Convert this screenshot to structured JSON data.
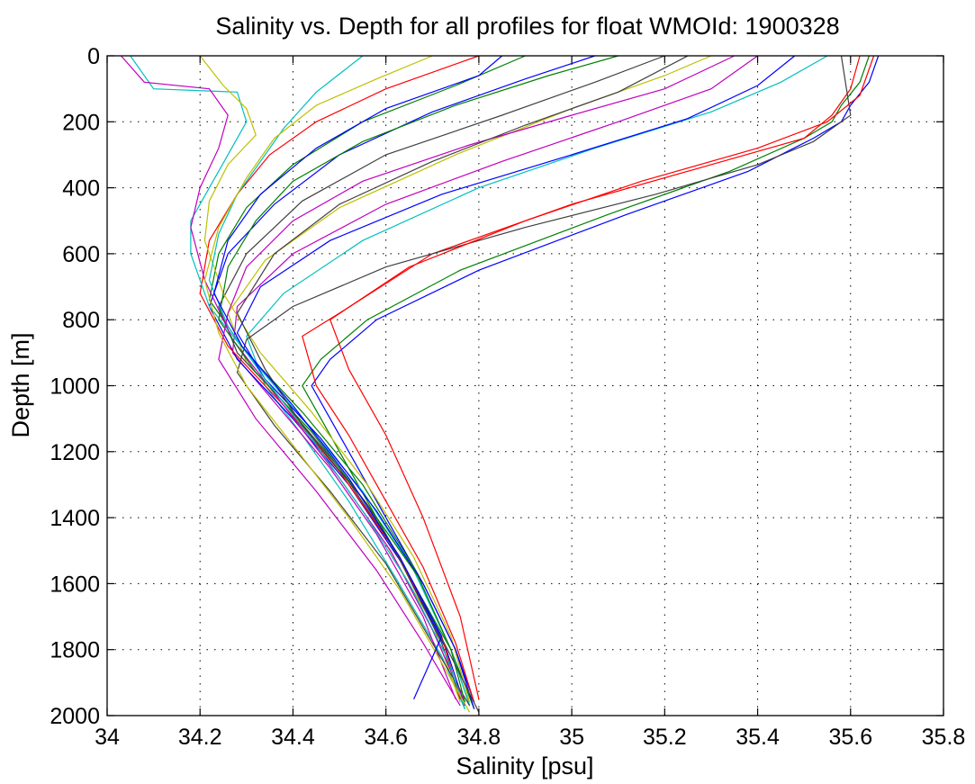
{
  "chart_data": {
    "type": "line",
    "title": "Salinity vs. Depth for all profiles for float WMOId: 1900328",
    "xlabel": "Salinity [psu]",
    "ylabel": "Depth [m]",
    "xlim": [
      34,
      35.8
    ],
    "ylim": [
      0,
      2000
    ],
    "y_reversed": true,
    "grid": true,
    "legend": "none",
    "x_ticks": [
      "34",
      "34.2",
      "34.4",
      "34.6",
      "34.8",
      "35",
      "35.2",
      "35.4",
      "35.6",
      "35.8"
    ],
    "y_ticks": [
      "0",
      "200",
      "400",
      "600",
      "800",
      "1000",
      "1200",
      "1400",
      "1600",
      "1800",
      "2000"
    ],
    "series_colors": [
      "#0000ff",
      "#008000",
      "#ff0000",
      "#00bfbf",
      "#bf00bf",
      "#bfbf00",
      "#404040"
    ],
    "series": [
      {
        "x": [
          35.66,
          35.64,
          35.6,
          35.58,
          35.52,
          35.38,
          35.12,
          34.8,
          34.58,
          34.48,
          34.44,
          34.52,
          34.6,
          34.68,
          34.75,
          34.79
        ],
        "y": [
          0,
          80,
          150,
          200,
          250,
          350,
          480,
          650,
          800,
          920,
          1000,
          1200,
          1400,
          1600,
          1800,
          1960
        ]
      },
      {
        "x": [
          35.64,
          35.62,
          35.58,
          35.56,
          35.5,
          35.34,
          35.08,
          34.76,
          34.56,
          34.46,
          34.42,
          34.5,
          34.58,
          34.66,
          34.74,
          34.78
        ],
        "y": [
          0,
          80,
          150,
          200,
          250,
          350,
          480,
          650,
          800,
          920,
          1000,
          1200,
          1400,
          1600,
          1800,
          1970
        ]
      },
      {
        "x": [
          35.62,
          35.6,
          35.56,
          35.5,
          35.3,
          35.0,
          34.7,
          34.5,
          34.42,
          34.45,
          34.52,
          34.6,
          34.68,
          34.75,
          34.79
        ],
        "y": [
          0,
          100,
          180,
          250,
          330,
          450,
          600,
          780,
          850,
          1000,
          1150,
          1350,
          1550,
          1780,
          1960
        ]
      },
      {
        "x": [
          35.55,
          35.45,
          35.3,
          35.05,
          34.8,
          34.55,
          34.38,
          34.3,
          34.34,
          34.42,
          34.52,
          34.62,
          34.72,
          34.77
        ],
        "y": [
          0,
          80,
          170,
          280,
          400,
          560,
          720,
          850,
          1000,
          1150,
          1350,
          1580,
          1820,
          1980
        ]
      },
      {
        "x": [
          35.4,
          35.3,
          35.1,
          34.85,
          34.6,
          34.4,
          34.28,
          34.27,
          34.36,
          34.48,
          34.58,
          34.68,
          34.75
        ],
        "y": [
          0,
          100,
          200,
          320,
          450,
          600,
          760,
          900,
          1050,
          1250,
          1450,
          1700,
          1950
        ]
      },
      {
        "x": [
          35.3,
          35.2,
          35.0,
          34.75,
          34.5,
          34.34,
          34.26,
          34.3,
          34.4,
          34.5,
          34.6,
          34.7,
          34.76
        ],
        "y": [
          0,
          60,
          160,
          300,
          460,
          620,
          780,
          930,
          1080,
          1280,
          1480,
          1720,
          1960
        ]
      },
      {
        "x": [
          35.2,
          35.05,
          34.85,
          34.6,
          34.42,
          34.3,
          34.24,
          34.28,
          34.38,
          34.5,
          34.62,
          34.72,
          34.76
        ],
        "y": [
          0,
          80,
          180,
          300,
          440,
          600,
          760,
          900,
          1050,
          1250,
          1500,
          1780,
          1950
        ]
      },
      {
        "x": [
          35.05,
          34.9,
          34.7,
          34.5,
          34.36,
          34.26,
          34.22,
          34.28,
          34.4,
          34.52,
          34.64,
          34.73,
          34.77
        ],
        "y": [
          0,
          70,
          170,
          300,
          450,
          600,
          760,
          920,
          1100,
          1300,
          1550,
          1800,
          1970
        ]
      },
      {
        "x": [
          34.9,
          34.75,
          34.55,
          34.4,
          34.3,
          34.24,
          34.22,
          34.3,
          34.42,
          34.55,
          34.66,
          34.74,
          34.79
        ],
        "y": [
          0,
          90,
          200,
          330,
          460,
          600,
          740,
          900,
          1080,
          1300,
          1550,
          1800,
          1980
        ]
      },
      {
        "x": [
          34.8,
          34.6,
          34.45,
          34.35,
          34.28,
          34.22,
          34.2,
          34.26,
          34.38,
          34.5,
          34.62,
          34.72,
          34.76
        ],
        "y": [
          0,
          100,
          200,
          300,
          420,
          560,
          720,
          880,
          1060,
          1260,
          1500,
          1760,
          1950
        ]
      },
      {
        "x": [
          34.05,
          34.1,
          34.28,
          34.3,
          34.26,
          34.22,
          34.18,
          34.18,
          34.22,
          34.3,
          34.42,
          34.55,
          34.66,
          34.74,
          34.78
        ],
        "y": [
          0,
          100,
          110,
          200,
          300,
          400,
          500,
          600,
          760,
          900,
          1100,
          1320,
          1560,
          1800,
          1970
        ]
      },
      {
        "x": [
          34.03,
          34.08,
          34.22,
          34.26,
          34.24,
          34.2,
          34.18,
          34.21,
          34.27,
          34.38,
          34.5,
          34.61,
          34.7,
          34.77
        ],
        "y": [
          0,
          80,
          100,
          180,
          280,
          400,
          520,
          680,
          860,
          1060,
          1280,
          1500,
          1740,
          1960
        ]
      },
      {
        "x": [
          34.2,
          34.25,
          34.3,
          34.32,
          34.26,
          34.22,
          34.21,
          34.25,
          34.33,
          34.44,
          34.56,
          34.66,
          34.74,
          34.78
        ],
        "y": [
          0,
          90,
          160,
          240,
          330,
          440,
          560,
          720,
          900,
          1080,
          1300,
          1520,
          1760,
          1960
        ]
      },
      {
        "x": [
          35.58,
          35.6,
          35.52,
          35.4,
          35.18,
          34.9,
          34.6,
          34.4,
          34.3,
          34.28,
          34.36,
          34.48,
          34.6,
          34.7,
          34.78
        ],
        "y": [
          0,
          180,
          260,
          330,
          420,
          520,
          640,
          760,
          860,
          960,
          1120,
          1320,
          1540,
          1780,
          1970
        ]
      },
      {
        "x": [
          35.48,
          35.4,
          35.25,
          35.0,
          34.72,
          34.48,
          34.33,
          34.28,
          34.34,
          34.46,
          34.58,
          34.68,
          34.75,
          34.79
        ],
        "y": [
          0,
          90,
          190,
          300,
          420,
          560,
          700,
          840,
          980,
          1160,
          1380,
          1600,
          1800,
          1980
        ]
      },
      {
        "x": [
          35.1,
          34.95,
          34.75,
          34.55,
          34.4,
          34.32,
          34.26,
          34.24,
          34.32,
          34.44,
          34.56,
          34.67,
          34.74,
          34.77
        ],
        "y": [
          0,
          60,
          150,
          260,
          380,
          500,
          640,
          800,
          960,
          1140,
          1360,
          1580,
          1800,
          1960
        ]
      },
      {
        "x": [
          35.65,
          35.62,
          35.55,
          35.4,
          35.15,
          34.9,
          34.65,
          34.48,
          34.52,
          34.6,
          34.68,
          34.76,
          34.8
        ],
        "y": [
          0,
          120,
          200,
          280,
          380,
          500,
          640,
          800,
          950,
          1150,
          1400,
          1700,
          1950
        ]
      },
      {
        "x": [
          34.55,
          34.45,
          34.38,
          34.33,
          34.28,
          34.24,
          34.22,
          34.26,
          34.34,
          34.44,
          34.55,
          34.65,
          34.73,
          34.77
        ],
        "y": [
          0,
          110,
          220,
          320,
          420,
          540,
          680,
          820,
          980,
          1160,
          1380,
          1600,
          1820,
          1980
        ]
      },
      {
        "x": [
          35.35,
          35.2,
          35.0,
          34.78,
          34.55,
          34.4,
          34.3,
          34.26,
          34.24,
          34.32,
          34.45,
          34.58,
          34.68,
          34.76
        ],
        "y": [
          0,
          100,
          180,
          270,
          380,
          500,
          640,
          780,
          920,
          1100,
          1320,
          1560,
          1780,
          1970
        ]
      },
      {
        "x": [
          34.7,
          34.58,
          34.45,
          34.36,
          34.3,
          34.24,
          34.21,
          34.24,
          34.3,
          34.4,
          34.52,
          34.63,
          34.72,
          34.78
        ],
        "y": [
          0,
          70,
          150,
          250,
          370,
          520,
          680,
          840,
          1000,
          1180,
          1400,
          1620,
          1840,
          1990
        ]
      },
      {
        "x": [
          35.25,
          35.1,
          34.9,
          34.7,
          34.5,
          34.36,
          34.28,
          34.34,
          34.42,
          34.56,
          34.66,
          34.74,
          34.8
        ],
        "y": [
          0,
          110,
          210,
          320,
          450,
          600,
          780,
          950,
          1120,
          1360,
          1600,
          1820,
          1990
        ]
      },
      {
        "x": [
          34.85,
          34.8,
          34.6,
          34.45,
          34.33,
          34.26,
          34.23,
          34.29,
          34.4,
          34.52,
          34.63,
          34.72,
          34.66
        ],
        "y": [
          0,
          60,
          160,
          280,
          420,
          560,
          720,
          880,
          1060,
          1280,
          1520,
          1760,
          1950
        ]
      }
    ]
  }
}
